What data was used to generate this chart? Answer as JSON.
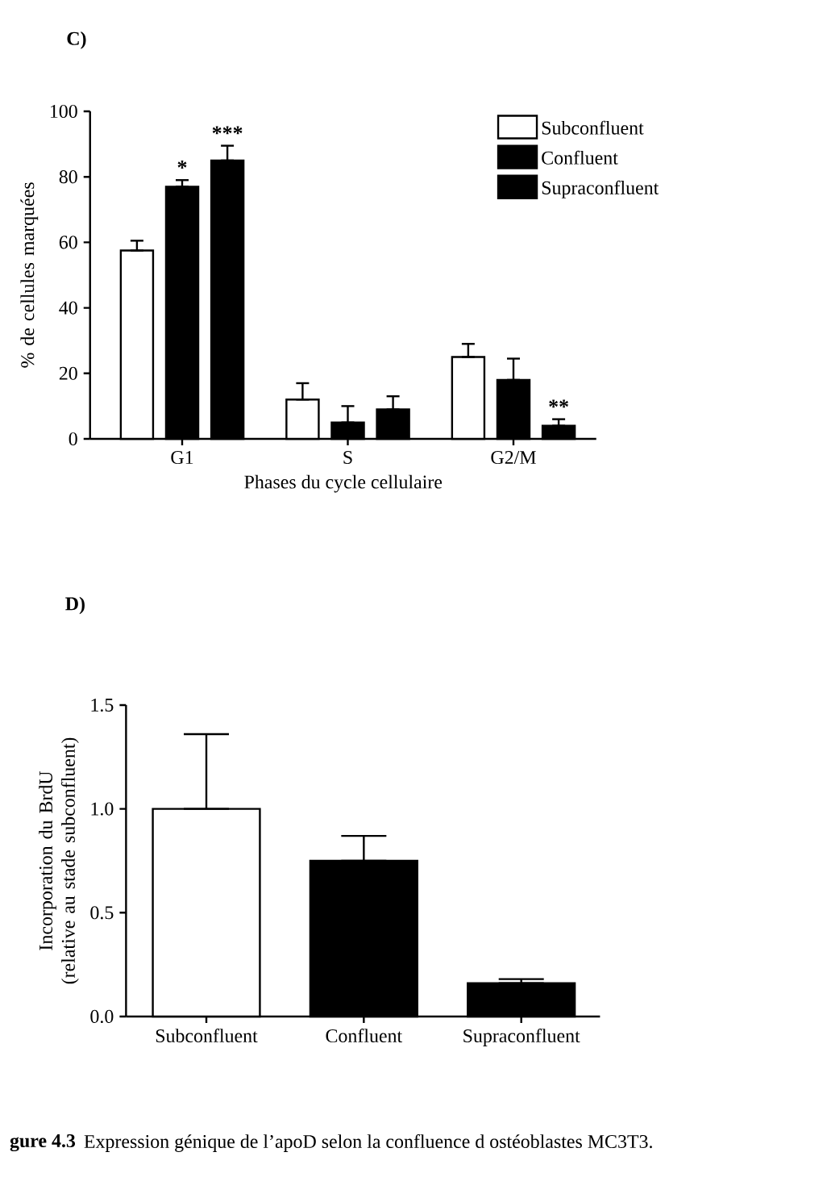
{
  "chart_data": [
    {
      "type": "bar",
      "title": "C)",
      "xlabel": "Phases du cycle cellulaire",
      "ylabel": "% de cellules marquées",
      "categories": [
        "G1",
        "S",
        "G2/M"
      ],
      "series": [
        {
          "name": "Subconfluent",
          "color": "#ffffff",
          "values": [
            57.5,
            12,
            25
          ],
          "errors": [
            [
              57.5,
              60.5
            ],
            [
              12,
              17
            ],
            [
              25,
              29
            ]
          ]
        },
        {
          "name": "Confluent",
          "color": "#000000",
          "values": [
            77,
            5,
            18
          ],
          "errors": [
            [
              77,
              79
            ],
            [
              5,
              10
            ],
            [
              18,
              24.5
            ]
          ]
        },
        {
          "name": "Supraconfluent",
          "color": "#000000",
          "values": [
            85,
            9,
            4
          ],
          "errors": [
            [
              85,
              89.5
            ],
            [
              9,
              13
            ],
            [
              4,
              6
            ]
          ]
        }
      ],
      "ylim": [
        0,
        100
      ],
      "yticks": [
        0,
        20,
        40,
        60,
        80,
        100
      ],
      "legend": "top right",
      "annotations": [
        "*",
        "***",
        "**"
      ]
    },
    {
      "type": "bar",
      "title": "D)",
      "ylabel": "Incorporation du BrdU (relative au stade subconfluent)",
      "categories": [
        "Subconfluent",
        "Confluent",
        "Supraconfluent"
      ],
      "values": [
        1.0,
        0.75,
        0.16
      ],
      "colors": [
        "#ffffff",
        "#000000",
        "#000000"
      ],
      "errors": [
        [
          1.0,
          1.36
        ],
        [
          0.75,
          0.87
        ],
        [
          0.16,
          0.18
        ]
      ],
      "ylim": [
        0,
        1.5
      ],
      "yticks": [
        {
          "value": 0,
          "label": "0.0"
        },
        {
          "value": 0.5,
          "label": "0.5"
        },
        {
          "value": 1.0,
          "label": "1.0"
        },
        {
          "value": 1.5,
          "label": "1.5"
        }
      ],
      "annotations": [
        "gure 4.3",
        "Expression génique de l’apoD selon la confluence d ostéoblastes MC3T3."
      ]
    }
  ]
}
